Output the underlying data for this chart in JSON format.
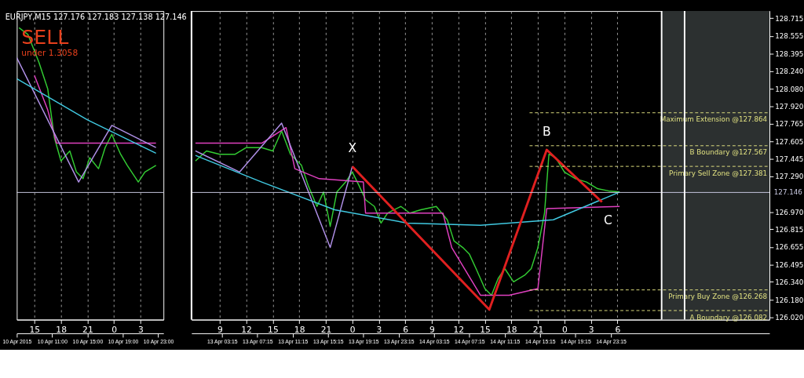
{
  "chart_data": [
    {
      "type": "line",
      "title": "EURJPY,M15  127.176 127.183 127.138 127.146",
      "tick_labels": "x",
      "xlim": [
        "2015-04-10T13:00",
        "2015-04-11T05:36"
      ],
      "ylim": [
        126.0,
        128.78
      ],
      "xticks": [
        {
          "value": "2015-04-10T15:00",
          "label": "15"
        },
        {
          "value": "2015-04-10T18:00",
          "label": "18"
        },
        {
          "value": "2015-04-10T21:00",
          "label": "21"
        },
        {
          "value": "2015-04-11T00:00",
          "label": "0"
        },
        {
          "value": "2015-04-11T03:00",
          "label": "3"
        }
      ],
      "x2lim": [
        "2015-04-10T07:00",
        "2015-04-10T23:36"
      ],
      "x2ticks": [
        {
          "value": "2015-04-10T07:00",
          "label": "10 Apr 2015"
        },
        {
          "value": "2015-04-10T11:00",
          "label": "10 Apr 11:00"
        },
        {
          "value": "2015-04-10T15:00",
          "label": "10 Apr 15:00"
        },
        {
          "value": "2015-04-10T19:00",
          "label": "10 Apr 19:00"
        },
        {
          "value": "2015-04-10T23:00",
          "label": "10 Apr 23:00"
        }
      ],
      "grid": "x",
      "line_style": "solid",
      "series": [
        {
          "color": "#33cc33",
          "x": [
            "2015-04-10T13:15",
            "2015-04-10T14:15",
            "2015-04-10T15:30",
            "2015-04-10T16:30",
            "2015-04-10T17:15",
            "2015-04-10T18:00",
            "2015-04-10T19:00",
            "2015-04-10T19:45",
            "2015-04-10T20:30",
            "2015-04-10T21:15",
            "2015-04-10T22:15",
            "2015-04-10T23:00",
            "2015-04-10T23:45",
            "2015-04-11T00:45",
            "2015-04-11T01:30",
            "2015-04-11T02:45",
            "2015-04-11T03:30",
            "2015-04-11T04:45"
          ],
          "values": [
            128.63,
            128.57,
            128.32,
            128.08,
            127.64,
            127.43,
            127.52,
            127.33,
            127.27,
            127.46,
            127.36,
            127.55,
            127.67,
            127.49,
            127.39,
            127.24,
            127.33,
            127.39
          ]
        },
        {
          "color": "#e040c0",
          "x": [
            "2015-04-10T15:00",
            "2015-04-10T16:30",
            "2015-04-10T17:30",
            "2015-04-11T04:45"
          ],
          "values": [
            128.2,
            127.89,
            127.59,
            127.59
          ]
        },
        {
          "color": "#b090e8",
          "x": [
            "2015-04-10T13:00",
            "2015-04-10T20:00",
            "2015-04-10T23:45",
            "2015-04-11T04:45"
          ],
          "values": [
            128.36,
            127.24,
            127.75,
            127.55
          ]
        },
        {
          "color": "#40c8e0",
          "x": [
            "2015-04-10T13:00",
            "2015-04-10T21:00",
            "2015-04-11T04:45"
          ],
          "values": [
            128.17,
            127.8,
            127.5
          ]
        }
      ],
      "ref_lines": [
        {
          "axis": "y",
          "value": 127.146,
          "color": "#c8c8e0",
          "line_style": "solid"
        }
      ],
      "annotations": [
        "SELL",
        "under 1.3058"
      ]
    },
    {
      "type": "line",
      "xlim": [
        "2015-04-13T05:48",
        "2015-04-15T23:12"
      ],
      "ylim": [
        126.0,
        128.78
      ],
      "xticks": [
        {
          "value": "2015-04-13T09:00",
          "label": "9"
        },
        {
          "value": "2015-04-13T12:00",
          "label": "12"
        },
        {
          "value": "2015-04-13T15:00",
          "label": "15"
        },
        {
          "value": "2015-04-13T18:00",
          "label": "18"
        },
        {
          "value": "2015-04-13T21:00",
          "label": "21"
        },
        {
          "value": "2015-04-14T00:00",
          "label": "0"
        },
        {
          "value": "2015-04-14T03:00",
          "label": "3"
        },
        {
          "value": "2015-04-14T06:00",
          "label": "6"
        },
        {
          "value": "2015-04-14T09:00",
          "label": "9"
        },
        {
          "value": "2015-04-14T12:00",
          "label": "12"
        },
        {
          "value": "2015-04-14T15:00",
          "label": "15"
        },
        {
          "value": "2015-04-14T18:00",
          "label": "18"
        },
        {
          "value": "2015-04-14T21:00",
          "label": "21"
        },
        {
          "value": "2015-04-15T00:00",
          "label": "0"
        },
        {
          "value": "2015-04-15T03:00",
          "label": "3"
        },
        {
          "value": "2015-04-15T06:00",
          "label": "6"
        }
      ],
      "x2lim": [
        "2015-04-12T23:48",
        "2015-04-15T17:12"
      ],
      "x2ticks": [
        {
          "value": "2015-04-13T03:15",
          "label": "13 Apr 03:15"
        },
        {
          "value": "2015-04-13T07:15",
          "label": "13 Apr 07:15"
        },
        {
          "value": "2015-04-13T11:15",
          "label": "13 Apr 11:15"
        },
        {
          "value": "2015-04-13T15:15",
          "label": "13 Apr 15:15"
        },
        {
          "value": "2015-04-13T19:15",
          "label": "13 Apr 19:15"
        },
        {
          "value": "2015-04-13T23:15",
          "label": "13 Apr 23:15"
        },
        {
          "value": "2015-04-14T03:15",
          "label": "14 Apr 03:15"
        },
        {
          "value": "2015-04-14T07:15",
          "label": "14 Apr 07:15"
        },
        {
          "value": "2015-04-14T11:15",
          "label": "14 Apr 11:15"
        },
        {
          "value": "2015-04-14T15:15",
          "label": "14 Apr 15:15"
        },
        {
          "value": "2015-04-14T19:15",
          "label": "14 Apr 19:15"
        },
        {
          "value": "2015-04-14T23:15",
          "label": "14 Apr 23:15"
        }
      ],
      "yticks": [
        {
          "value": 126.02,
          "label": "126.020"
        },
        {
          "value": 126.18,
          "label": "126.180"
        },
        {
          "value": 126.34,
          "label": "126.340"
        },
        126.495,
        126.655,
        126.815,
        {
          "value": 126.97,
          "label": "126.970"
        },
        {
          "value": 127.29,
          "label": "127.290"
        },
        127.445,
        127.605,
        127.765,
        {
          "value": 127.92,
          "label": "127.920"
        },
        {
          "value": 128.08,
          "label": "128.080"
        },
        {
          "value": 128.24,
          "label": "128.240"
        },
        128.395,
        128.555,
        128.715
      ],
      "grid": "x",
      "line_style": "solid",
      "series": [
        {
          "color": "#33cc33",
          "x": [
            "2015-04-13T06:15",
            "2015-04-13T07:30",
            "2015-04-13T09:00",
            "2015-04-13T10:45",
            "2015-04-13T12:00",
            "2015-04-13T13:45",
            "2015-04-13T15:00",
            "2015-04-13T16:00",
            "2015-04-13T17:00",
            "2015-04-13T18:15",
            "2015-04-13T19:00",
            "2015-04-13T20:00",
            "2015-04-13T20:45",
            "2015-04-13T21:30",
            "2015-04-13T22:15",
            "2015-04-13T23:15",
            "2015-04-14T00:00",
            "2015-04-14T00:45",
            "2015-04-14T01:30",
            "2015-04-14T02:30",
            "2015-04-14T03:15",
            "2015-04-14T04:00",
            "2015-04-14T05:30",
            "2015-04-14T06:30",
            "2015-04-14T07:45",
            "2015-04-14T09:30",
            "2015-04-14T10:45",
            "2015-04-14T11:30",
            "2015-04-14T12:30",
            "2015-04-14T13:15",
            "2015-04-14T14:00",
            "2015-04-14T15:00",
            "2015-04-14T15:45",
            "2015-04-14T16:30",
            "2015-04-14T17:15",
            "2015-04-14T18:15",
            "2015-04-14T19:30",
            "2015-04-14T20:15",
            "2015-04-14T21:00",
            "2015-04-14T21:45",
            "2015-04-14T22:15",
            "2015-04-14T23:00",
            "2015-04-15T00:00",
            "2015-04-15T01:15",
            "2015-04-15T02:30",
            "2015-04-15T03:45",
            "2015-04-15T05:00",
            "2015-04-15T06:15"
          ],
          "values": [
            127.43,
            127.52,
            127.49,
            127.49,
            127.55,
            127.55,
            127.52,
            127.7,
            127.49,
            127.39,
            127.21,
            127.02,
            127.15,
            126.84,
            127.15,
            127.24,
            127.33,
            127.21,
            127.08,
            127.02,
            126.87,
            126.96,
            127.02,
            126.96,
            126.99,
            127.02,
            126.9,
            126.71,
            126.65,
            126.59,
            126.46,
            126.28,
            126.22,
            126.37,
            126.46,
            126.34,
            126.4,
            126.46,
            126.65,
            126.96,
            127.49,
            127.46,
            127.33,
            127.27,
            127.24,
            127.18,
            127.16,
            127.15
          ]
        },
        {
          "color": "#e040c0",
          "x": [
            "2015-04-13T06:15",
            "2015-04-13T13:45",
            "2015-04-13T16:30",
            "2015-04-13T17:30",
            "2015-04-13T20:15",
            "2015-04-14T01:15",
            "2015-04-14T01:30",
            "2015-04-14T10:15",
            "2015-04-14T11:15",
            "2015-04-14T14:30",
            "2015-04-14T17:45",
            "2015-04-14T21:00",
            "2015-04-14T22:00",
            "2015-04-15T06:15"
          ],
          "values": [
            127.59,
            127.59,
            127.73,
            127.36,
            127.27,
            127.24,
            126.96,
            126.96,
            126.65,
            126.22,
            126.22,
            126.28,
            127.0,
            127.02
          ]
        },
        {
          "color": "#b090e8",
          "x": [
            "2015-04-13T06:15",
            "2015-04-13T11:15",
            "2015-04-13T16:00",
            "2015-04-13T21:30",
            "2015-04-14T00:00"
          ],
          "values": [
            127.52,
            127.33,
            127.77,
            126.65,
            127.38
          ]
        },
        {
          "color": "#40c8e0",
          "x": [
            "2015-04-13T06:15",
            "2015-04-13T13:45",
            "2015-04-13T22:00",
            "2015-04-14T06:15",
            "2015-04-14T14:30",
            "2015-04-14T22:45",
            "2015-04-15T06:15"
          ],
          "values": [
            127.48,
            127.24,
            126.99,
            126.87,
            126.85,
            126.9,
            127.15
          ]
        },
        {
          "color": "#e02020",
          "x": [
            "2015-04-14T00:00",
            "2015-04-14T15:30",
            "2015-04-14T22:00",
            "2015-04-15T04:15"
          ],
          "values": [
            127.38,
            126.09,
            127.53,
            127.06
          ]
        }
      ],
      "ref_lines": [
        {
          "axis": "y",
          "value": 127.864,
          "label": "Maximum Extension @127.864",
          "color": "#e0e080",
          "line_style": "dashed"
        },
        {
          "axis": "y",
          "value": 127.567,
          "label": "B Boundary @127.567",
          "color": "#e0e080",
          "line_style": "dashed"
        },
        {
          "axis": "y",
          "value": 127.381,
          "label": "Primary Sell Zone @127.381",
          "color": "#e0e080",
          "line_style": "dashed"
        },
        {
          "axis": "y",
          "value": 126.268,
          "label": "Primary Buy Zone @126.268",
          "color": "#e0e080",
          "line_style": "dashed"
        },
        {
          "axis": "y",
          "value": 126.082,
          "label": "A Boundary @126.082",
          "color": "#e0e080",
          "line_style": "dashed"
        },
        {
          "axis": "y",
          "value": 127.146,
          "label": "127.146",
          "color": "#c8c8e0",
          "line_style": "solid"
        },
        {
          "axis": "x",
          "value": "2015-04-13T05:48",
          "color": "#ffffff",
          "line_style": "solid"
        },
        {
          "axis": "x",
          "value": "2015-04-15T11:00",
          "color": "#ffffff",
          "line_style": "solid"
        },
        {
          "axis": "x",
          "value": "2015-04-15T13:36",
          "color": "#ffffff",
          "line_style": "solid"
        }
      ],
      "bands": [
        {
          "axis": "x",
          "from": "2015-04-15T11:00",
          "to": "2015-04-15T23:12",
          "color": "#2c3030"
        }
      ],
      "annotations": [
        {
          "text": "X",
          "x": "2015-04-14T00:00",
          "y": 127.38
        },
        {
          "text": "B",
          "x": "2015-04-14T22:00",
          "y": 127.53
        },
        {
          "text": "C",
          "x": "2015-04-15T04:15",
          "y": 127.06
        }
      ]
    }
  ]
}
